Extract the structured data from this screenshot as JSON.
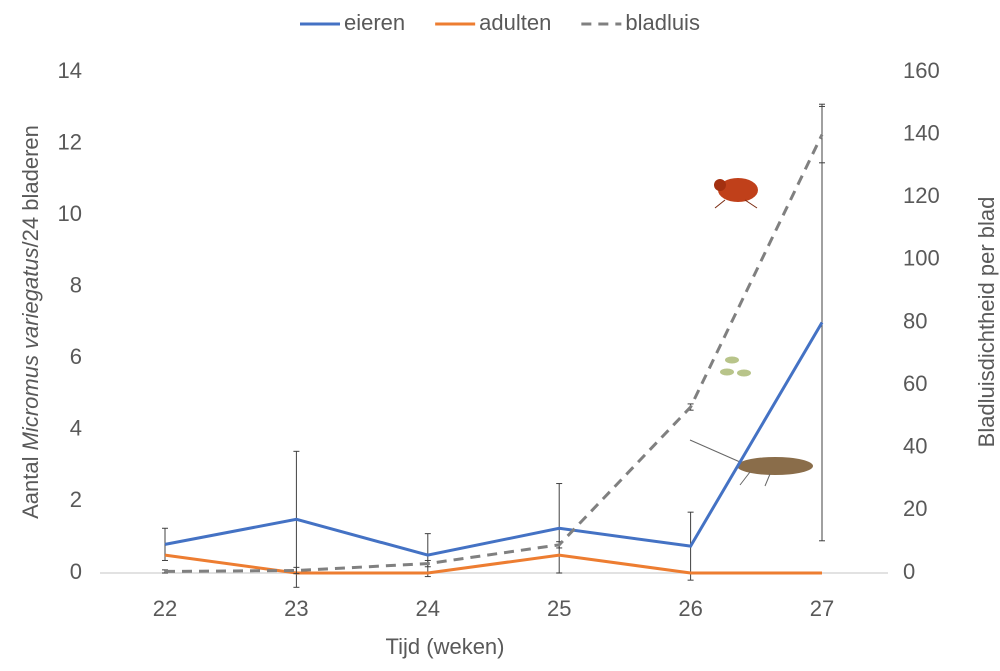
{
  "chart_data": {
    "type": "line",
    "x_label": "Tijd (weken)",
    "y_label": [
      "Aantal ",
      "Micromus variegatus",
      "/24 bladeren"
    ],
    "y2_label": "Bladluisdichtheid per blad",
    "categories": [
      "22",
      "23",
      "24",
      "25",
      "26",
      "27"
    ],
    "ylim": [
      0,
      14
    ],
    "yticks": [
      0,
      2,
      4,
      6,
      8,
      10,
      12,
      14
    ],
    "y2lim": [
      0,
      160
    ],
    "y2ticks": [
      0,
      20,
      40,
      60,
      80,
      100,
      120,
      140,
      160
    ],
    "legend": "top",
    "series": [
      {
        "name": "eieren",
        "color": "#4472c4",
        "dash": false,
        "values": [
          0.8,
          1.5,
          0.5,
          1.25,
          0.75,
          7.0
        ],
        "errors": [
          0.45,
          1.9,
          0.6,
          1.25,
          0.95,
          6.1
        ]
      },
      {
        "name": "adulten",
        "color": "#ed7d31",
        "dash": false,
        "values": [
          0.5,
          0,
          0,
          0.5,
          0,
          0
        ]
      },
      {
        "name": "bladluis",
        "color": "#808080",
        "dash": true,
        "axis": "y2",
        "values": [
          0.5,
          0.8,
          3,
          9,
          53,
          140
        ],
        "errors": [
          0.5,
          1,
          1,
          1,
          1,
          9
        ]
      }
    ]
  }
}
